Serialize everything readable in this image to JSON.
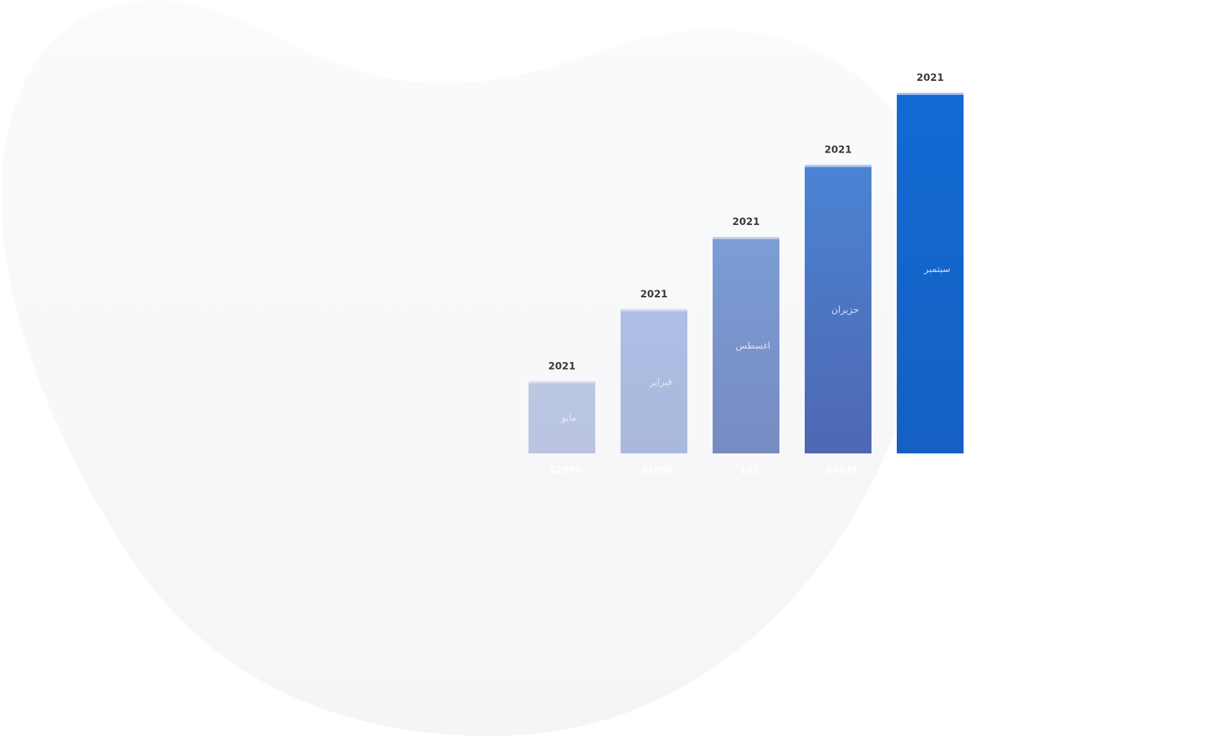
{
  "colors": {
    "background": "#ffffff",
    "blob": "#f5f6f8",
    "year_text": "#3b3b3b",
    "bar_text": "#eef2fb",
    "base_text": "#ffffff",
    "bar_cap": "#dfe6f3"
  },
  "chart_data": {
    "type": "bar",
    "title": "",
    "xlabel": "",
    "ylabel": "",
    "grid": false,
    "legend": "none",
    "categories": [
      "مايو",
      "فبراير",
      "اغسطس",
      "حزيران",
      "سبتمبر"
    ],
    "values": [
      20,
      40,
      60,
      80,
      100
    ],
    "ylim": [
      0,
      100
    ],
    "bars": [
      {
        "label": "مايو",
        "year": "2021",
        "base_label": "$2050",
        "value": 20,
        "color_top": "#bcc8e3",
        "color_bottom": "#b9c4e0"
      },
      {
        "label": "فبراير",
        "year": "2021",
        "base_label": "$2050",
        "value": 40,
        "color_top": "#aebfe5",
        "color_bottom": "#a9b8dc"
      },
      {
        "label": "اغسطس",
        "year": "2021",
        "base_label": "$61",
        "value": 60,
        "color_top": "#7b9dd5",
        "color_bottom": "#778bc2"
      },
      {
        "label": "حزيران",
        "year": "2021",
        "base_label": "$8635",
        "value": 80,
        "color_top": "#4a84d3",
        "color_bottom": "#4f67b2"
      },
      {
        "label": "سبتمبر",
        "year": "2021",
        "base_label": "",
        "value": 100,
        "color_top": "#126ad3",
        "color_bottom": "#1560c2"
      }
    ]
  }
}
